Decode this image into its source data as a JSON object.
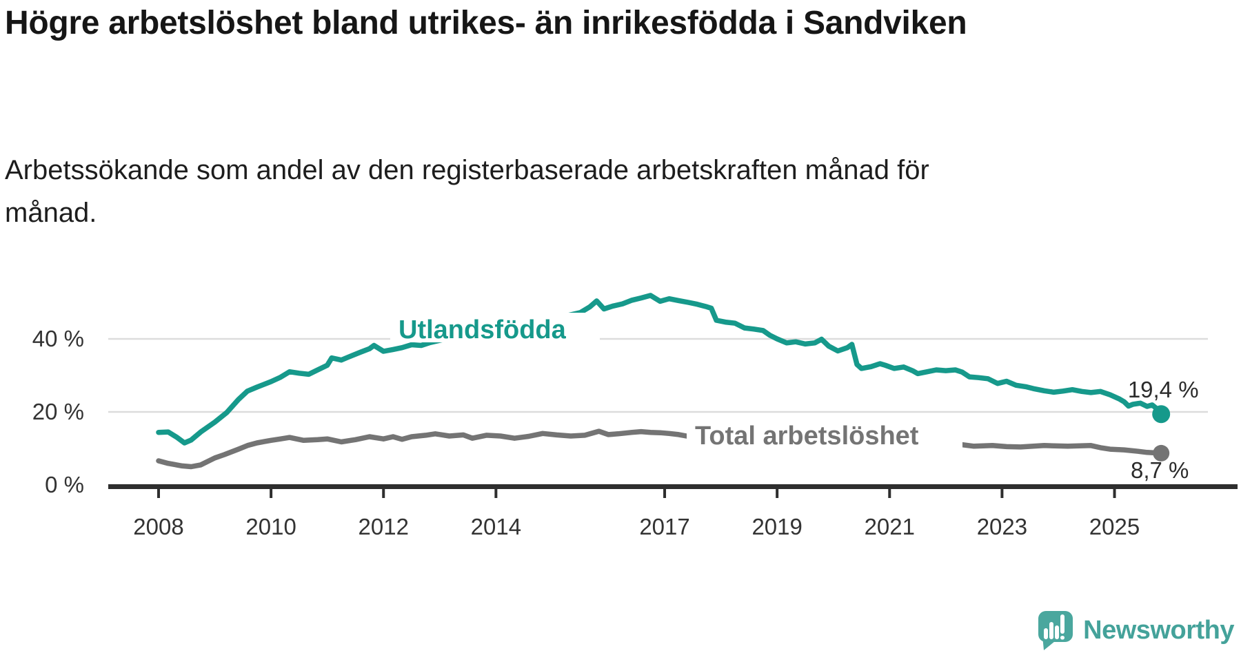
{
  "header": {
    "title": "Högre arbetslöshet bland utrikes- än inrikesfödda i Sandviken",
    "subtitle": "Arbetssökande som andel av den registerbaserade arbetskraften månad för månad."
  },
  "chart_data": {
    "type": "line",
    "unit": "%",
    "grid": "horizontal",
    "colors": {
      "accent_teal": "#16998B",
      "line_gray": "#747474",
      "axis": "#2e2e2e",
      "gridline": "#dcdcdc"
    },
    "x_axis": {
      "ticks": [
        {
          "year": 2008,
          "label": "2008"
        },
        {
          "year": 2010,
          "label": "2010"
        },
        {
          "year": 2012,
          "label": "2012"
        },
        {
          "year": 2014,
          "label": "2014"
        },
        {
          "year": 2017,
          "label": "2017"
        },
        {
          "year": 2019,
          "label": "2019"
        },
        {
          "year": 2021,
          "label": "2021"
        },
        {
          "year": 2023,
          "label": "2023"
        },
        {
          "year": 2025,
          "label": "2025"
        }
      ],
      "range": [
        2007.1,
        2026.2
      ]
    },
    "y_axis": {
      "ticks": [
        {
          "value": 40,
          "label": "40 %"
        },
        {
          "value": 20,
          "label": "20 %"
        },
        {
          "value": 0,
          "label": "0 %"
        }
      ],
      "range": [
        0,
        55
      ]
    },
    "series": [
      {
        "name": "Utlandsfödda",
        "color": "#16998B",
        "end_label": "19,4 %",
        "end_value": 19.4,
        "points": [
          [
            2008.0,
            14.4
          ],
          [
            2008.17,
            14.5
          ],
          [
            2008.33,
            13.0
          ],
          [
            2008.46,
            11.5
          ],
          [
            2008.58,
            12.3
          ],
          [
            2008.75,
            14.5
          ],
          [
            2009.0,
            17.2
          ],
          [
            2009.21,
            19.8
          ],
          [
            2009.42,
            23.4
          ],
          [
            2009.58,
            25.7
          ],
          [
            2009.75,
            26.8
          ],
          [
            2010.0,
            28.3
          ],
          [
            2010.17,
            29.5
          ],
          [
            2010.33,
            31.0
          ],
          [
            2010.5,
            30.6
          ],
          [
            2010.67,
            30.3
          ],
          [
            2010.83,
            31.5
          ],
          [
            2011.0,
            32.8
          ],
          [
            2011.08,
            34.8
          ],
          [
            2011.25,
            34.2
          ],
          [
            2011.42,
            35.3
          ],
          [
            2011.58,
            36.3
          ],
          [
            2011.75,
            37.3
          ],
          [
            2011.83,
            38.2
          ],
          [
            2012.0,
            36.6
          ],
          [
            2012.17,
            37.1
          ],
          [
            2012.33,
            37.6
          ],
          [
            2012.5,
            38.4
          ],
          [
            2012.67,
            38.2
          ],
          [
            2012.83,
            39.0
          ],
          [
            2013.0,
            39.6
          ],
          [
            2013.17,
            40.2
          ],
          [
            2013.33,
            40.7
          ],
          [
            2013.5,
            41.2
          ],
          [
            2013.67,
            41.0
          ],
          [
            2013.83,
            41.6
          ],
          [
            2014.0,
            42.1
          ],
          [
            2014.17,
            42.7
          ],
          [
            2014.33,
            43.2
          ],
          [
            2014.5,
            43.6
          ],
          [
            2014.67,
            44.0
          ],
          [
            2014.83,
            44.6
          ],
          [
            2015.0,
            45.3
          ],
          [
            2015.17,
            46.0
          ],
          [
            2015.33,
            46.6
          ],
          [
            2015.5,
            47.2
          ],
          [
            2015.67,
            48.8
          ],
          [
            2015.79,
            50.4
          ],
          [
            2015.92,
            48.2
          ],
          [
            2016.08,
            49.0
          ],
          [
            2016.25,
            49.6
          ],
          [
            2016.42,
            50.6
          ],
          [
            2016.58,
            51.2
          ],
          [
            2016.75,
            51.9
          ],
          [
            2016.92,
            50.3
          ],
          [
            2017.08,
            51.0
          ],
          [
            2017.25,
            50.5
          ],
          [
            2017.42,
            50.0
          ],
          [
            2017.58,
            49.5
          ],
          [
            2017.75,
            48.8
          ],
          [
            2017.83,
            48.4
          ],
          [
            2017.92,
            45.1
          ],
          [
            2018.08,
            44.6
          ],
          [
            2018.25,
            44.3
          ],
          [
            2018.42,
            43.0
          ],
          [
            2018.58,
            42.7
          ],
          [
            2018.75,
            42.3
          ],
          [
            2018.87,
            41.0
          ],
          [
            2019.0,
            40.0
          ],
          [
            2019.17,
            38.9
          ],
          [
            2019.33,
            39.2
          ],
          [
            2019.5,
            38.6
          ],
          [
            2019.67,
            38.9
          ],
          [
            2019.79,
            39.9
          ],
          [
            2019.92,
            38.0
          ],
          [
            2020.08,
            36.7
          ],
          [
            2020.25,
            37.6
          ],
          [
            2020.33,
            38.5
          ],
          [
            2020.42,
            33.0
          ],
          [
            2020.5,
            31.9
          ],
          [
            2020.67,
            32.4
          ],
          [
            2020.83,
            33.2
          ],
          [
            2020.92,
            32.8
          ],
          [
            2021.08,
            31.9
          ],
          [
            2021.25,
            32.3
          ],
          [
            2021.42,
            31.2
          ],
          [
            2021.5,
            30.5
          ],
          [
            2021.67,
            31.0
          ],
          [
            2021.83,
            31.5
          ],
          [
            2022.0,
            31.3
          ],
          [
            2022.17,
            31.5
          ],
          [
            2022.29,
            30.9
          ],
          [
            2022.42,
            29.6
          ],
          [
            2022.58,
            29.4
          ],
          [
            2022.75,
            29.1
          ],
          [
            2022.92,
            27.8
          ],
          [
            2023.08,
            28.4
          ],
          [
            2023.25,
            27.3
          ],
          [
            2023.42,
            26.9
          ],
          [
            2023.58,
            26.3
          ],
          [
            2023.75,
            25.8
          ],
          [
            2023.92,
            25.4
          ],
          [
            2024.08,
            25.7
          ],
          [
            2024.25,
            26.1
          ],
          [
            2024.42,
            25.6
          ],
          [
            2024.58,
            25.3
          ],
          [
            2024.75,
            25.6
          ],
          [
            2024.92,
            24.7
          ],
          [
            2025.08,
            23.6
          ],
          [
            2025.17,
            22.8
          ],
          [
            2025.25,
            21.6
          ],
          [
            2025.33,
            22.1
          ],
          [
            2025.46,
            22.4
          ],
          [
            2025.58,
            21.5
          ],
          [
            2025.67,
            21.9
          ],
          [
            2025.75,
            20.9
          ],
          [
            2025.83,
            19.4
          ]
        ]
      },
      {
        "name": "Total arbetslöshet",
        "color": "#747474",
        "end_label": "8,7 %",
        "end_value": 8.7,
        "points": [
          [
            2008.0,
            6.6
          ],
          [
            2008.17,
            5.9
          ],
          [
            2008.42,
            5.2
          ],
          [
            2008.58,
            5.0
          ],
          [
            2008.75,
            5.5
          ],
          [
            2009.0,
            7.4
          ],
          [
            2009.17,
            8.3
          ],
          [
            2009.42,
            9.8
          ],
          [
            2009.58,
            10.8
          ],
          [
            2009.75,
            11.5
          ],
          [
            2010.0,
            12.2
          ],
          [
            2010.17,
            12.6
          ],
          [
            2010.33,
            13.0
          ],
          [
            2010.58,
            12.2
          ],
          [
            2010.83,
            12.4
          ],
          [
            2011.0,
            12.6
          ],
          [
            2011.25,
            11.8
          ],
          [
            2011.5,
            12.4
          ],
          [
            2011.75,
            13.2
          ],
          [
            2012.0,
            12.6
          ],
          [
            2012.17,
            13.2
          ],
          [
            2012.33,
            12.5
          ],
          [
            2012.5,
            13.2
          ],
          [
            2012.75,
            13.6
          ],
          [
            2012.92,
            14.0
          ],
          [
            2013.17,
            13.4
          ],
          [
            2013.42,
            13.7
          ],
          [
            2013.58,
            12.8
          ],
          [
            2013.83,
            13.6
          ],
          [
            2014.08,
            13.4
          ],
          [
            2014.33,
            12.8
          ],
          [
            2014.58,
            13.3
          ],
          [
            2014.83,
            14.1
          ],
          [
            2015.08,
            13.7
          ],
          [
            2015.33,
            13.4
          ],
          [
            2015.58,
            13.6
          ],
          [
            2015.83,
            14.7
          ],
          [
            2016.0,
            13.8
          ],
          [
            2016.17,
            14.0
          ],
          [
            2016.42,
            14.4
          ],
          [
            2016.58,
            14.6
          ],
          [
            2016.75,
            14.4
          ],
          [
            2016.92,
            14.3
          ],
          [
            2017.08,
            14.1
          ],
          [
            2017.25,
            13.8
          ],
          [
            2017.42,
            13.3
          ],
          [
            2017.67,
            13.0
          ],
          [
            2018.0,
            12.6
          ],
          [
            2018.5,
            12.2
          ],
          [
            2019.0,
            12.0
          ],
          [
            2019.5,
            11.8
          ],
          [
            2020.0,
            11.6
          ],
          [
            2020.42,
            12.6
          ],
          [
            2020.75,
            12.3
          ],
          [
            2021.0,
            12.0
          ],
          [
            2021.5,
            11.6
          ],
          [
            2021.83,
            11.3
          ],
          [
            2022.25,
            11.1
          ],
          [
            2022.5,
            10.6
          ],
          [
            2022.83,
            10.8
          ],
          [
            2023.08,
            10.5
          ],
          [
            2023.33,
            10.4
          ],
          [
            2023.75,
            10.8
          ],
          [
            2024.17,
            10.6
          ],
          [
            2024.58,
            10.8
          ],
          [
            2024.75,
            10.2
          ],
          [
            2024.92,
            9.8
          ],
          [
            2025.17,
            9.6
          ],
          [
            2025.42,
            9.2
          ],
          [
            2025.58,
            8.9
          ],
          [
            2025.83,
            8.7
          ]
        ]
      }
    ]
  },
  "footer": {
    "brand": "Newsworthy",
    "logo_color": "#4aa79e"
  }
}
